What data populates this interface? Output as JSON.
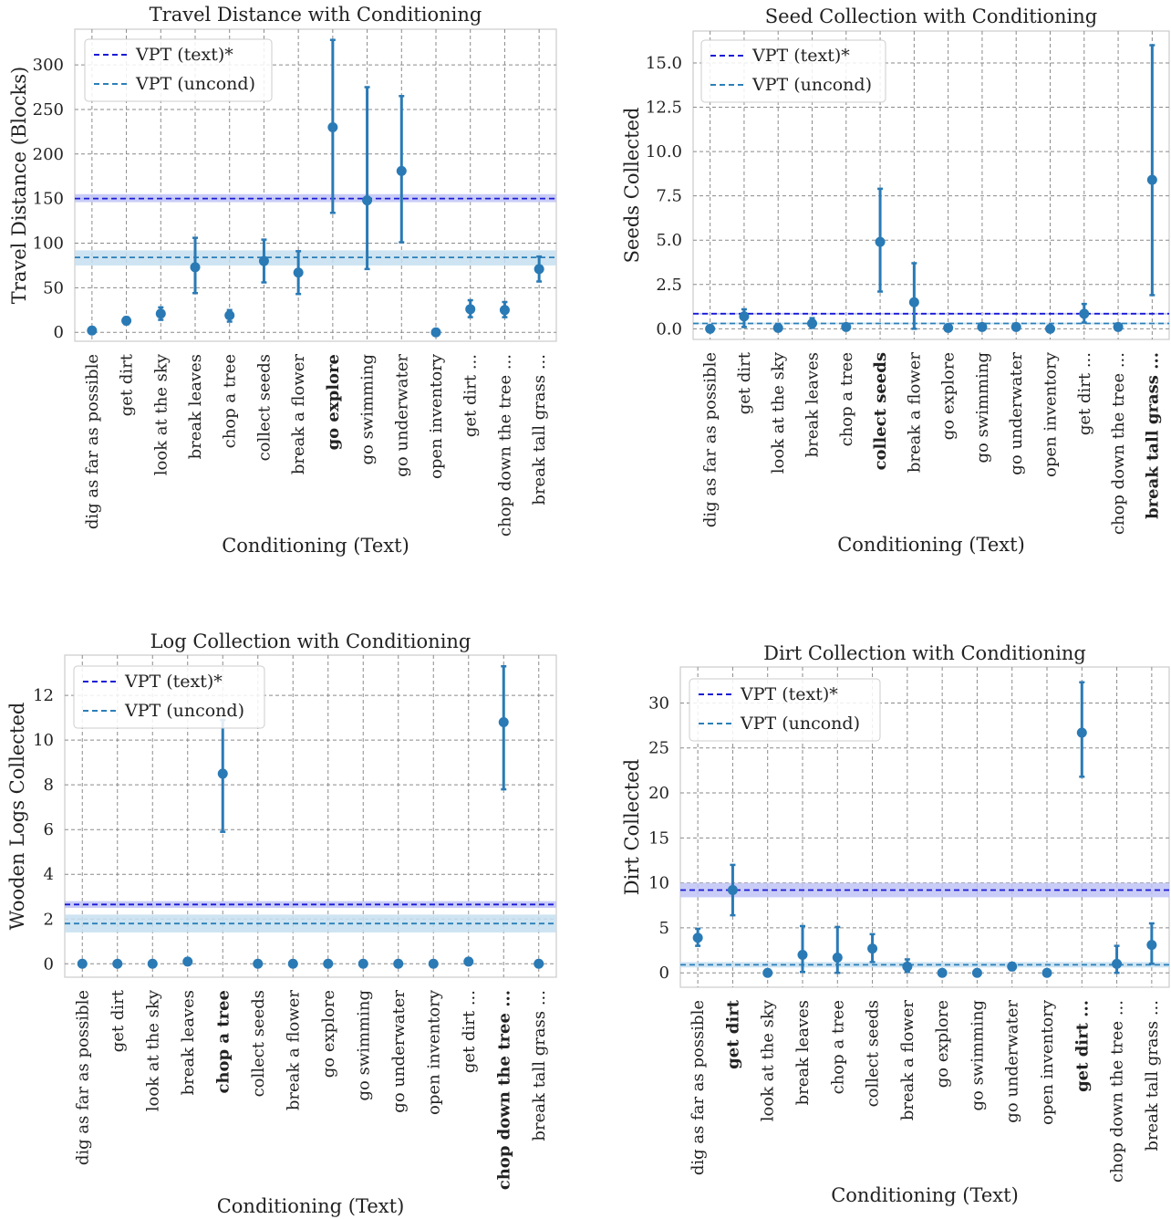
{
  "categories": [
    "dig as far as possible",
    "get dirt",
    "look at the sky",
    "break leaves",
    "chop a tree",
    "collect seeds",
    "break a flower",
    "go explore",
    "go swimming",
    "go underwater",
    "open inventory",
    "get dirt ...",
    "chop down the tree ...",
    "break tall grass ..."
  ],
  "legend": {
    "text_label": "VPT (text)*",
    "uncond_label": "VPT (uncond)"
  },
  "colors": {
    "points": "#2a7ab5",
    "text_line": "#1a1ad6",
    "text_band": "#bfc3f5",
    "uncond_line": "#2c7fb8",
    "uncond_band": "#c6dff0",
    "grid": "#8a8a8a",
    "frame": "#cccccc"
  },
  "chart_data": [
    {
      "type": "scatter",
      "title": "Travel Distance with Conditioning",
      "xlabel": "Conditioning (Text)",
      "ylabel": "Travel Distance (Blocks)",
      "ylim": [
        -10,
        340
      ],
      "yticks": [
        0,
        50,
        100,
        150,
        200,
        250,
        300
      ],
      "bold_categories": [
        "go explore"
      ],
      "values": [
        2,
        13,
        21,
        73,
        19,
        80,
        67,
        230,
        148,
        181,
        0,
        26,
        25,
        71
      ],
      "err_low": [
        0,
        9,
        14,
        44,
        12,
        56,
        43,
        134,
        71,
        101,
        0,
        17,
        17,
        57
      ],
      "err_high": [
        4,
        17,
        28,
        106,
        25,
        104,
        91,
        328,
        275,
        265,
        0,
        36,
        34,
        85
      ],
      "baselines": {
        "text": {
          "value": 150,
          "band": [
            146,
            155
          ]
        },
        "uncond": {
          "value": 84,
          "band": [
            75,
            92
          ]
        }
      },
      "legend_position": "upper-left",
      "grid": true
    },
    {
      "type": "scatter",
      "title": "Seed Collection with Conditioning",
      "xlabel": "Conditioning (Text)",
      "ylabel": "Seeds Collected",
      "ylim": [
        -0.6,
        16.8
      ],
      "yticks": [
        0.0,
        2.5,
        5.0,
        7.5,
        10.0,
        12.5,
        15.0
      ],
      "tick_decimals": 1,
      "bold_categories": [
        "collect seeds",
        "break tall grass ..."
      ],
      "values": [
        0.0,
        0.7,
        0.05,
        0.3,
        0.1,
        4.9,
        1.5,
        0.05,
        0.1,
        0.1,
        0.0,
        0.85,
        0.1,
        8.4
      ],
      "err_low": [
        0.0,
        0.1,
        0.0,
        0.05,
        0.0,
        2.1,
        0.0,
        0.0,
        0.0,
        0.0,
        0.0,
        0.35,
        0.0,
        1.9
      ],
      "err_high": [
        0.0,
        1.1,
        0.1,
        0.6,
        0.2,
        7.9,
        3.7,
        0.1,
        0.2,
        0.2,
        0.0,
        1.4,
        0.2,
        16.0
      ],
      "baselines": {
        "text": {
          "value": 0.85,
          "band": [
            0.8,
            0.9
          ]
        },
        "uncond": {
          "value": 0.3,
          "band": [
            0.25,
            0.35
          ]
        }
      },
      "legend_position": "upper-left",
      "grid": true
    },
    {
      "type": "scatter",
      "title": "Log Collection with Conditioning",
      "xlabel": "Conditioning (Text)",
      "ylabel": "Wooden Logs Collected",
      "ylim": [
        -0.6,
        13.8
      ],
      "yticks": [
        0,
        2,
        4,
        6,
        8,
        10,
        12
      ],
      "bold_categories": [
        "chop a tree",
        "chop down the tree ..."
      ],
      "values": [
        0.0,
        0.0,
        0.0,
        0.1,
        8.5,
        0.0,
        0.0,
        0.0,
        0.0,
        0.0,
        0.0,
        0.1,
        10.8,
        0.0
      ],
      "err_low": [
        0.0,
        0.0,
        0.0,
        0.0,
        5.9,
        0.0,
        0.0,
        0.0,
        0.0,
        0.0,
        0.0,
        0.0,
        7.8,
        0.0
      ],
      "err_high": [
        0.0,
        0.0,
        0.0,
        0.2,
        10.9,
        0.0,
        0.0,
        0.0,
        0.0,
        0.0,
        0.0,
        0.2,
        13.3,
        0.0
      ],
      "baselines": {
        "text": {
          "value": 2.65,
          "band": [
            2.5,
            2.8
          ]
        },
        "uncond": {
          "value": 1.8,
          "band": [
            1.4,
            2.2
          ]
        }
      },
      "legend_position": "upper-left",
      "grid": true
    },
    {
      "type": "scatter",
      "title": "Dirt Collection with Conditioning",
      "xlabel": "Conditioning (Text)",
      "ylabel": "Dirt Collected",
      "ylim": [
        -1.6,
        34.0
      ],
      "yticks": [
        0,
        5,
        10,
        15,
        20,
        25,
        30
      ],
      "bold_categories": [
        "get dirt",
        "get dirt ..."
      ],
      "values": [
        3.9,
        9.2,
        0.0,
        2.0,
        1.7,
        2.7,
        0.7,
        0.0,
        0.0,
        0.7,
        0.0,
        26.7,
        1.0,
        3.1
      ],
      "err_low": [
        3.0,
        6.4,
        0.0,
        0.1,
        0.0,
        1.2,
        0.1,
        0.0,
        0.0,
        0.3,
        0.0,
        21.8,
        0.0,
        1.0
      ],
      "err_high": [
        4.9,
        12.0,
        0.0,
        5.2,
        5.1,
        4.3,
        1.5,
        0.0,
        0.0,
        1.1,
        0.0,
        32.3,
        3.0,
        5.5
      ],
      "baselines": {
        "text": {
          "value": 9.2,
          "band": [
            8.4,
            10.0
          ]
        },
        "uncond": {
          "value": 0.9,
          "band": [
            0.6,
            1.2
          ]
        }
      },
      "legend_position": "upper-left",
      "grid": true
    }
  ]
}
